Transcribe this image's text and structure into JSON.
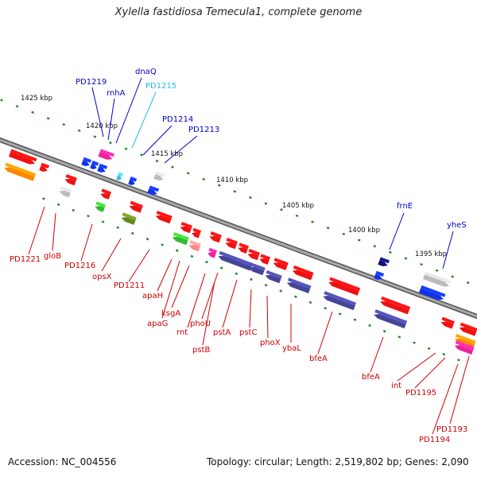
{
  "title": "Xylella fastidiosa Temecula1, complete genome",
  "footer": {
    "accession": "Accession: NC_004556",
    "summary": "Topology: circular; Length: 2,519,802 bp; Genes: 2,090"
  },
  "colors": {
    "forward_label": "#0000cc",
    "forward_label_light": "#22bbdd",
    "reverse_label": "#cc0000",
    "backbone": "#888888",
    "tick": "#228822"
  },
  "kbp_marks": [
    "1425 kbp",
    "1420 kbp",
    "1415 kbp",
    "1410 kbp",
    "1405 kbp",
    "1400 kbp",
    "1395 kbp"
  ],
  "forward_genes": [
    "PD1219",
    "rnhA",
    "dnaQ",
    "PD1215",
    "PD1214",
    "PD1213",
    "frnE",
    "yheS"
  ],
  "reverse_genes": [
    "PD1221",
    "gloB",
    "PD1216",
    "opsX",
    "PD1211",
    "apaH",
    "apaG",
    "ksgA",
    "rnt",
    "pstB",
    "phoU",
    "pstA",
    "pstC",
    "phoX",
    "ybaL",
    "bfeA",
    "bfeA",
    "int",
    "PD1195",
    "PD1194",
    "PD1193"
  ]
}
